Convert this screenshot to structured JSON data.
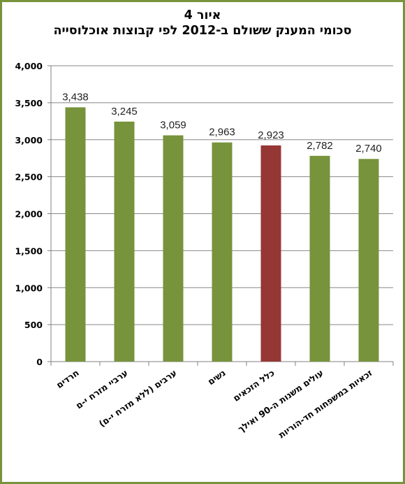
{
  "chart_data": {
    "type": "bar",
    "title_line1": "איור 4",
    "title_line2": "סכומי המענק ששולם ב-2012 לפי קבוצות אוכלוסייה",
    "categories": [
      "חרדים",
      "ערביי מזרח י-ם",
      "ערבים (ללא מזרח י-ם)",
      "נשים",
      "כלל הזכאים",
      "עולים משנות ה-90 ואילך",
      "זכאיות במשפחות חד-הוריות"
    ],
    "values": [
      3438,
      3245,
      3059,
      2963,
      2923,
      2782,
      2740
    ],
    "value_labels": [
      "3,438",
      "3,245",
      "3,059",
      "2,963",
      "2,923",
      "2,782",
      "2,740"
    ],
    "highlight_index": 4,
    "colors": {
      "default": "#77933c",
      "highlight": "#953735",
      "frame": "#77933c"
    },
    "ylim": [
      0,
      4000
    ],
    "yticks": [
      0,
      500,
      1000,
      1500,
      2000,
      2500,
      3000,
      3500,
      4000
    ],
    "ytick_labels": [
      "0",
      "500",
      "1,000",
      "1,500",
      "2,000",
      "2,500",
      "3,000",
      "3,500",
      "4,000"
    ],
    "grid": true,
    "xlabel": "",
    "ylabel": ""
  }
}
